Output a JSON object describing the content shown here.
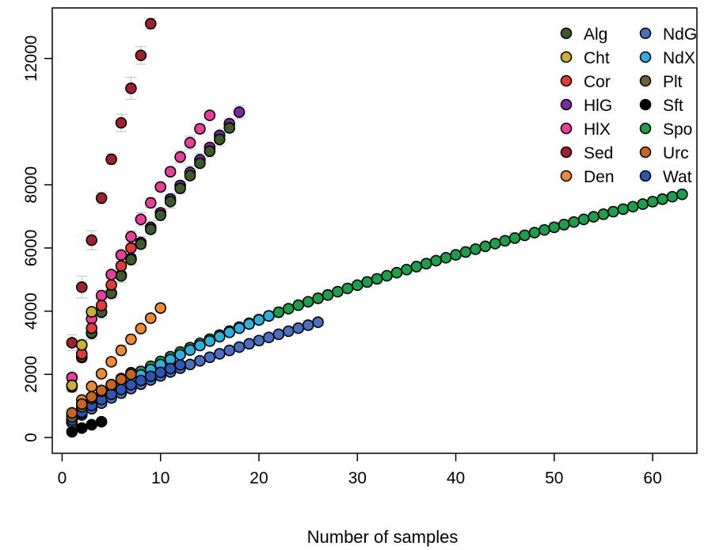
{
  "chart_data": {
    "type": "scatter",
    "title": "",
    "xlabel": "Number of samples",
    "ylabel": "",
    "xlim": [
      -1,
      64.5
    ],
    "ylim": [
      -500,
      13600
    ],
    "xticks": [
      0,
      10,
      20,
      30,
      40,
      50,
      60
    ],
    "yticks": [
      0,
      2000,
      4000,
      6000,
      8000,
      12000
    ],
    "legend": {
      "position": "top-right",
      "columns": [
        [
          "Alg",
          "Cht",
          "Cor",
          "HlG",
          "HlX",
          "Sed",
          "Den"
        ],
        [
          "NdG",
          "NdX",
          "Plt",
          "Sft",
          "Spo",
          "Urc",
          "Wat"
        ]
      ]
    },
    "grid": false,
    "error_bars": true,
    "series": [
      {
        "name": "Alg",
        "color": "#3d5a2a",
        "n": 17,
        "first": 1650,
        "last": 9800,
        "power": 0.62,
        "err": 150
      },
      {
        "name": "Cht",
        "color": "#c9b233",
        "n": 3,
        "first": 1650,
        "last": 3980,
        "power": 0.62,
        "err": 150
      },
      {
        "name": "Cor",
        "color": "#e03a3a",
        "n": 7,
        "first": 1650,
        "last": 6000,
        "power": 0.62,
        "err": 150
      },
      {
        "name": "HlG",
        "color": "#7b2a99",
        "n": 18,
        "first": 1600,
        "last": 10300,
        "power": 0.62,
        "err": 150
      },
      {
        "name": "HlX",
        "color": "#e8409a",
        "n": 15,
        "first": 1900,
        "last": 10200,
        "power": 0.62,
        "err": 150
      },
      {
        "name": "Sed",
        "color": "#a0202d",
        "n": 9,
        "first": 3000,
        "last": 13100,
        "power": 0.68,
        "err": 250
      },
      {
        "name": "Den",
        "color": "#ee8a35",
        "n": 10,
        "first": 700,
        "last": 4100,
        "power": 0.78,
        "err": 120
      },
      {
        "name": "NdG",
        "color": "#4a6fc0",
        "n": 26,
        "first": 480,
        "last": 3650,
        "power": 0.68,
        "err": 100
      },
      {
        "name": "NdX",
        "color": "#2fb0dc",
        "n": 21,
        "first": 480,
        "last": 3850,
        "power": 0.69,
        "err": 100
      },
      {
        "name": "Plt",
        "color": "#6b6040",
        "n": 7,
        "first": 650,
        "last": 2050,
        "power": 0.62,
        "err": 100
      },
      {
        "name": "Sft",
        "color": "#000000",
        "n": 4,
        "first": 180,
        "last": 500,
        "power": 0.75,
        "err": 60
      },
      {
        "name": "Spo",
        "color": "#1d9e4a",
        "n": 63,
        "first": 560,
        "last": 7700,
        "power": 0.63,
        "err": 120
      },
      {
        "name": "Urc",
        "color": "#c8651f",
        "n": 7,
        "first": 780,
        "last": 2000,
        "power": 0.62,
        "err": 100
      },
      {
        "name": "Wat",
        "color": "#2e55b3",
        "n": 12,
        "first": 550,
        "last": 2300,
        "power": 0.62,
        "err": 100
      }
    ]
  }
}
